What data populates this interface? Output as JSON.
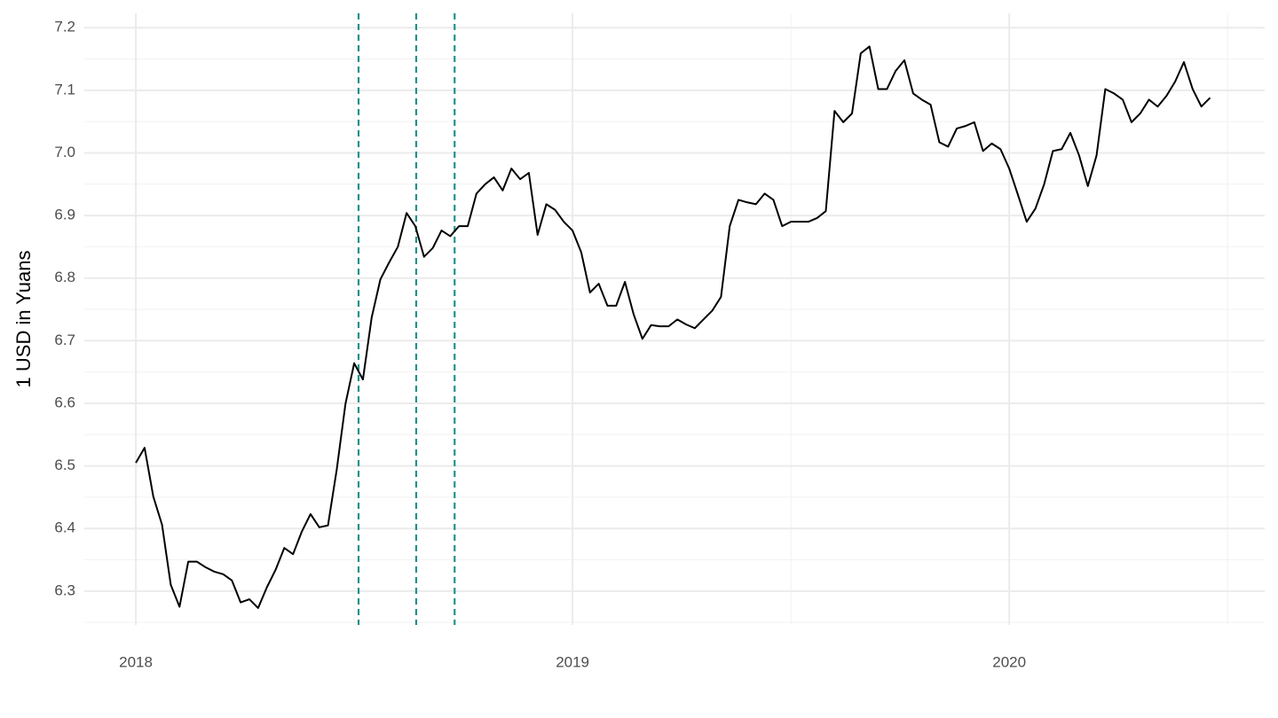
{
  "chart_data": {
    "type": "line",
    "y_label": "1 USD in Yuans",
    "x": [
      2018,
      2018.02,
      2018.04,
      2018.06,
      2018.08,
      2018.1,
      2018.12,
      2018.14,
      2018.16,
      2018.18,
      2018.2,
      2018.22,
      2018.24,
      2018.26,
      2018.28,
      2018.3,
      2018.32,
      2018.34,
      2018.36,
      2018.38,
      2018.4,
      2018.42,
      2018.44,
      2018.46,
      2018.48,
      2018.5,
      2018.52,
      2018.54,
      2018.56,
      2018.58,
      2018.6,
      2018.62,
      2018.64,
      2018.66,
      2018.68,
      2018.7,
      2018.72,
      2018.74,
      2018.76,
      2018.78,
      2018.8,
      2018.82,
      2018.84,
      2018.86,
      2018.88,
      2018.9,
      2018.92,
      2018.94,
      2018.96,
      2018.98,
      2019,
      2019.02,
      2019.04,
      2019.06,
      2019.08,
      2019.1,
      2019.12,
      2019.14,
      2019.16,
      2019.18,
      2019.2,
      2019.22,
      2019.24,
      2019.26,
      2019.28,
      2019.3,
      2019.32,
      2019.34,
      2019.36,
      2019.38,
      2019.4,
      2019.42,
      2019.44,
      2019.46,
      2019.48,
      2019.5,
      2019.52,
      2019.54,
      2019.56,
      2019.58,
      2019.6,
      2019.62,
      2019.64,
      2019.66,
      2019.68,
      2019.7,
      2019.72,
      2019.74,
      2019.76,
      2019.78,
      2019.8,
      2019.82,
      2019.84,
      2019.86,
      2019.88,
      2019.9,
      2019.92,
      2019.94,
      2019.96,
      2019.98,
      2020,
      2020.02,
      2020.04,
      2020.06,
      2020.08,
      2020.1,
      2020.12,
      2020.14,
      2020.16,
      2020.18,
      2020.2,
      2020.22,
      2020.24,
      2020.26,
      2020.28,
      2020.3,
      2020.32,
      2020.34,
      2020.36,
      2020.38,
      2020.4,
      2020.42,
      2020.44,
      2020.46
    ],
    "series": [
      {
        "color": "#000000",
        "values": [
          6.505,
          6.529,
          6.451,
          6.406,
          6.31,
          6.275,
          6.347,
          6.347,
          6.338,
          6.331,
          6.327,
          6.317,
          6.282,
          6.287,
          6.273,
          6.306,
          6.334,
          6.369,
          6.359,
          6.395,
          6.423,
          6.402,
          6.405,
          6.494,
          6.599,
          6.664,
          6.638,
          6.737,
          6.798,
          6.825,
          6.85,
          6.904,
          6.883,
          6.834,
          6.848,
          6.876,
          6.867,
          6.883,
          6.883,
          6.935,
          6.95,
          6.961,
          6.94,
          6.975,
          6.958,
          6.968,
          6.869,
          6.918,
          6.909,
          6.89,
          6.876,
          6.841,
          6.777,
          6.791,
          6.756,
          6.756,
          6.794,
          6.742,
          6.703,
          6.725,
          6.723,
          6.723,
          6.734,
          6.726,
          6.72,
          6.734,
          6.748,
          6.77,
          6.883,
          6.925,
          6.921,
          6.918,
          6.935,
          6.925,
          6.883,
          6.89,
          6.89,
          6.89,
          6.896,
          6.907,
          7.067,
          7.049,
          7.063,
          7.159,
          7.17,
          7.102,
          7.102,
          7.131,
          7.148,
          7.095,
          7.085,
          7.077,
          7.017,
          7.01,
          7.039,
          7.043,
          7.049,
          7.003,
          7.015,
          7.006,
          6.975,
          6.933,
          6.89,
          6.911,
          6.95,
          7.003,
          7.006,
          7.032,
          6.996,
          6.947,
          6.996,
          7.102,
          7.095,
          7.085,
          7.049,
          7.063,
          7.085,
          7.074,
          7.091,
          7.114,
          7.145,
          7.102,
          7.074,
          7.088
        ]
      }
    ],
    "vlines": [
      2018.51,
      2018.642,
      2018.73
    ],
    "vline_color": "#21908c",
    "xlim": [
      2017.882,
      2020.585
    ],
    "ylim": [
      6.246,
      7.223
    ],
    "xticks": [
      2018,
      2019,
      2020
    ],
    "xminorticks": [
      2018.5,
      2019.5,
      2020.5
    ],
    "yticks": [
      6.3,
      6.4,
      6.5,
      6.6,
      6.7,
      6.8,
      6.9,
      {
        "value": 7,
        "label": "7.0"
      },
      7.1,
      7.2
    ],
    "yminorticks": [
      6.25,
      6.35,
      6.45,
      6.55,
      6.65,
      6.75,
      6.85,
      6.95,
      7.05,
      7.15
    ],
    "grid": true
  }
}
